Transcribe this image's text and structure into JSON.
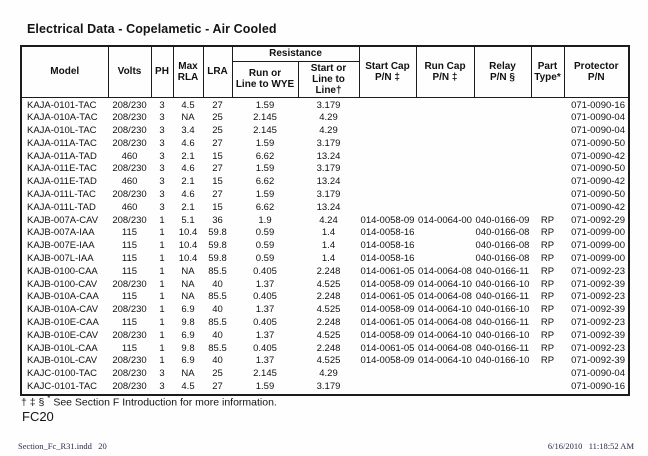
{
  "page": {
    "title": "Electrical Data - Copelametic - Air Cooled",
    "footnote_symbols": "† ‡ § ",
    "footnote_star": "*",
    "footnote_text": " See Section F Introduction for more information.",
    "page_code": "FC20",
    "print_footer_left": "Section_Fc_R31.indd   20",
    "print_footer_right": "6/16/2010   11:18:52 AM"
  },
  "table": {
    "headers": {
      "model": "Model",
      "volts": "Volts",
      "ph": "PH",
      "max_rla": "Max\nRLA",
      "lra": "LRA",
      "resistance_group": "Resistance",
      "resistance_run": "Run or\nLine to WYE",
      "resistance_start": "Start or\nLine to Line†",
      "start_cap": "Start Cap\nP/N ‡",
      "run_cap": "Run Cap\nP/N ‡",
      "relay": "Relay\nP/N §",
      "part_type": "Part\nType*",
      "protector": "Protector\nP/N"
    },
    "rows": [
      [
        "KAJA-0101-TAC",
        "208/230",
        "3",
        "4.5",
        "27",
        "1.59",
        "3.179",
        "",
        "",
        "",
        "",
        "071-0090-16"
      ],
      [
        "KAJA-010A-TAC",
        "208/230",
        "3",
        "NA",
        "25",
        "2.145",
        "4.29",
        "",
        "",
        "",
        "",
        "071-0090-04"
      ],
      [
        "KAJA-010L-TAC",
        "208/230",
        "3",
        "3.4",
        "25",
        "2.145",
        "4.29",
        "",
        "",
        "",
        "",
        "071-0090-04"
      ],
      [
        "KAJA-011A-TAC",
        "208/230",
        "3",
        "4.6",
        "27",
        "1.59",
        "3.179",
        "",
        "",
        "",
        "",
        "071-0090-50"
      ],
      [
        "KAJA-011A-TAD",
        "460",
        "3",
        "2.1",
        "15",
        "6.62",
        "13.24",
        "",
        "",
        "",
        "",
        "071-0090-42"
      ],
      [
        "KAJA-011E-TAC",
        "208/230",
        "3",
        "4.6",
        "27",
        "1.59",
        "3.179",
        "",
        "",
        "",
        "",
        "071-0090-50"
      ],
      [
        "KAJA-011E-TAD",
        "460",
        "3",
        "2.1",
        "15",
        "6.62",
        "13.24",
        "",
        "",
        "",
        "",
        "071-0090-42"
      ],
      [
        "KAJA-011L-TAC",
        "208/230",
        "3",
        "4.6",
        "27",
        "1.59",
        "3.179",
        "",
        "",
        "",
        "",
        "071-0090-50"
      ],
      [
        "KAJA-011L-TAD",
        "460",
        "3",
        "2.1",
        "15",
        "6.62",
        "13.24",
        "",
        "",
        "",
        "",
        "071-0090-42"
      ],
      [
        "KAJB-007A-CAV",
        "208/230",
        "1",
        "5.1",
        "36",
        "1.9",
        "4.24",
        "014-0058-09",
        "014-0064-00",
        "040-0166-09",
        "RP",
        "071-0092-29"
      ],
      [
        "KAJB-007A-IAA",
        "115",
        "1",
        "10.4",
        "59.8",
        "0.59",
        "1.4",
        "014-0058-16",
        "",
        "040-0166-08",
        "RP",
        "071-0099-00"
      ],
      [
        "KAJB-007E-IAA",
        "115",
        "1",
        "10.4",
        "59.8",
        "0.59",
        "1.4",
        "014-0058-16",
        "",
        "040-0166-08",
        "RP",
        "071-0099-00"
      ],
      [
        "KAJB-007L-IAA",
        "115",
        "1",
        "10.4",
        "59.8",
        "0.59",
        "1.4",
        "014-0058-16",
        "",
        "040-0166-08",
        "RP",
        "071-0099-00"
      ],
      [
        "KAJB-0100-CAA",
        "115",
        "1",
        "NA",
        "85.5",
        "0.405",
        "2.248",
        "014-0061-05",
        "014-0064-08",
        "040-0166-11",
        "RP",
        "071-0092-23"
      ],
      [
        "KAJB-0100-CAV",
        "208/230",
        "1",
        "NA",
        "40",
        "1.37",
        "4.525",
        "014-0058-09",
        "014-0064-10",
        "040-0166-10",
        "RP",
        "071-0092-39"
      ],
      [
        "KAJB-010A-CAA",
        "115",
        "1",
        "NA",
        "85.5",
        "0.405",
        "2.248",
        "014-0061-05",
        "014-0064-08",
        "040-0166-11",
        "RP",
        "071-0092-23"
      ],
      [
        "KAJB-010A-CAV",
        "208/230",
        "1",
        "6.9",
        "40",
        "1.37",
        "4.525",
        "014-0058-09",
        "014-0064-10",
        "040-0166-10",
        "RP",
        "071-0092-39"
      ],
      [
        "KAJB-010E-CAA",
        "115",
        "1",
        "9.8",
        "85.5",
        "0.405",
        "2.248",
        "014-0061-05",
        "014-0064-08",
        "040-0166-11",
        "RP",
        "071-0092-23"
      ],
      [
        "KAJB-010E-CAV",
        "208/230",
        "1",
        "6.9",
        "40",
        "1.37",
        "4.525",
        "014-0058-09",
        "014-0064-10",
        "040-0166-10",
        "RP",
        "071-0092-39"
      ],
      [
        "KAJB-010L-CAA",
        "115",
        "1",
        "9.8",
        "85.5",
        "0.405",
        "2.248",
        "014-0061-05",
        "014-0064-08",
        "040-0166-11",
        "RP",
        "071-0092-23"
      ],
      [
        "KAJB-010L-CAV",
        "208/230",
        "1",
        "6.9",
        "40",
        "1.37",
        "4.525",
        "014-0058-09",
        "014-0064-10",
        "040-0166-10",
        "RP",
        "071-0092-39"
      ],
      [
        "KAJC-0100-TAC",
        "208/230",
        "3",
        "NA",
        "25",
        "2.145",
        "4.29",
        "",
        "",
        "",
        "",
        "071-0090-04"
      ],
      [
        "KAJC-0101-TAC",
        "208/230",
        "3",
        "4.5",
        "27",
        "1.59",
        "3.179",
        "",
        "",
        "",
        "",
        "071-0090-16"
      ]
    ]
  },
  "colors": {
    "border": "#1c1c1c",
    "text": "#111111",
    "print_footer_text": "#28284a",
    "background": "#fefefe"
  }
}
